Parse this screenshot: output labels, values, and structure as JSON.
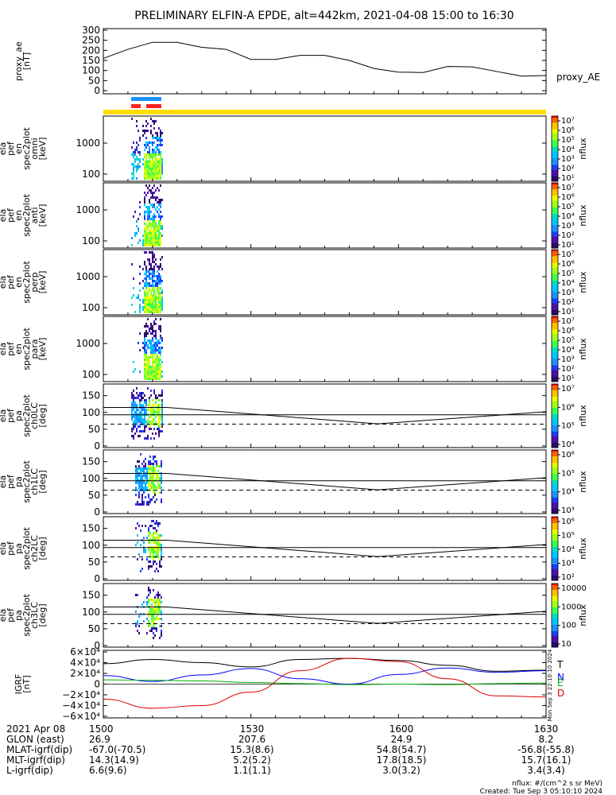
{
  "title": "PRELIMINARY ELFIN-A EPDE, alt=442km, 2021-04-08 15:00 to 16:30",
  "panels": [
    {
      "id": "proxy_ae",
      "ylabel": [
        "proxy_ae",
        "[nT]"
      ],
      "legend": "proxy_AE",
      "yticks": [
        "300",
        "250",
        "200",
        "150",
        "100",
        "50",
        "0"
      ]
    },
    {
      "id": "spec_omni",
      "ylabel": [
        "ela",
        "pef",
        "en",
        "spec2plot",
        "omni",
        "[keV]"
      ],
      "yticks": [
        "1000",
        "100"
      ],
      "cbar_label": "nflux",
      "cbar_ticks": [
        "10⁷",
        "10⁶",
        "10⁵",
        "10⁴",
        "10³",
        "10²",
        "10¹"
      ]
    },
    {
      "id": "spec_anti",
      "ylabel": [
        "ela",
        "pef",
        "en",
        "spec2plot",
        "anti",
        "[keV]"
      ],
      "yticks": [
        "1000",
        "100"
      ],
      "cbar_label": "nflux",
      "cbar_ticks": [
        "10⁷",
        "10⁶",
        "10⁵",
        "10⁴",
        "10³",
        "10²",
        "10¹"
      ]
    },
    {
      "id": "spec_perp",
      "ylabel": [
        "ela",
        "pef",
        "en",
        "spec2plot",
        "perp",
        "[keV]"
      ],
      "yticks": [
        "1000",
        "100"
      ],
      "cbar_label": "nflux",
      "cbar_ticks": [
        "10⁷",
        "10⁶",
        "10⁵",
        "10⁴",
        "10³",
        "10²",
        "10¹"
      ]
    },
    {
      "id": "spec_para",
      "ylabel": [
        "ela",
        "pef",
        "en",
        "spec2plot",
        "para",
        "[keV]"
      ],
      "yticks": [
        "1000",
        "100"
      ],
      "cbar_label": "nflux",
      "cbar_ticks": [
        "10⁷",
        "10⁶",
        "10⁵",
        "10⁴",
        "10³",
        "10²",
        "10¹"
      ]
    },
    {
      "id": "pa_ch0",
      "ylabel": [
        "ela",
        "pef",
        "pa",
        "spec2plot",
        "ch0LC",
        "[deg]"
      ],
      "yticks": [
        "150",
        "100",
        "50",
        "0"
      ],
      "cbar_label": "nflux",
      "cbar_ticks": [
        "10⁷",
        "10⁶",
        "10⁵",
        "10⁴"
      ]
    },
    {
      "id": "pa_ch1",
      "ylabel": [
        "ela",
        "pef",
        "pa",
        "spec2plot",
        "ch1LC",
        "[deg]"
      ],
      "yticks": [
        "150",
        "100",
        "50",
        "0"
      ],
      "cbar_label": "nflux",
      "cbar_ticks": [
        "10⁶",
        "10⁵",
        "10⁴",
        "10³"
      ]
    },
    {
      "id": "pa_ch2",
      "ylabel": [
        "ela",
        "pef",
        "pa",
        "spec2plot",
        "ch2LC",
        "[deg]"
      ],
      "yticks": [
        "150",
        "100",
        "50",
        "0"
      ],
      "cbar_label": "nflux",
      "cbar_ticks": [
        "10⁶",
        "10⁵",
        "10⁴",
        "10³",
        "10²"
      ]
    },
    {
      "id": "pa_ch3",
      "ylabel": [
        "ela",
        "pef",
        "pa",
        "spec2plot",
        "ch3LC",
        "[deg]"
      ],
      "yticks": [
        "150",
        "100",
        "50",
        "0"
      ],
      "cbar_label": "nflux",
      "cbar_ticks": [
        "10000",
        "1000",
        "100",
        "10"
      ]
    },
    {
      "id": "igrf",
      "ylabel": [
        "IGRF",
        "[nT]"
      ],
      "yticks": [
        "6×10⁴",
        "4×10⁴",
        "2×10⁴",
        "0",
        "−2×10⁴",
        "−4×10⁴",
        "−6×10⁴"
      ],
      "legend": [
        "T",
        "N",
        "E",
        "D"
      ],
      "stamp": "Mon Sep  3 22:10:10 2024"
    }
  ],
  "footer": {
    "rows": [
      {
        "label": "2021 Apr 08",
        "values": [
          "1500",
          "1530",
          "1600",
          "1630"
        ]
      },
      {
        "label": "GLON (east)",
        "values": [
          "26.9",
          "207.6",
          "24.9",
          "8.2"
        ]
      },
      {
        "label": "MLAT-igrf(dip)",
        "values": [
          "-67.0(-70.5)",
          "15.3(8.6)",
          "54.8(54.7)",
          "-56.8(-55.8)"
        ]
      },
      {
        "label": "MLT-igrf(dip)",
        "values": [
          "14.3(14.9)",
          "5.2(5.2)",
          "17.8(18.5)",
          "15.7(16.1)"
        ]
      },
      {
        "label": "L-igrf(dip)",
        "values": [
          "6.6(9.6)",
          "1.1(1.1)",
          "3.0(3.2)",
          "3.4(3.4)"
        ]
      }
    ],
    "note1": "nflux: #/(cm^2 s sr MeV)",
    "note2": "Created: Tue Sep  3 05:10:10 2024"
  },
  "colors": {
    "T": "#000000",
    "N": "#0000ff",
    "E": "#00b000",
    "D": "#e00000",
    "status_bar": "#ffdd00",
    "seg_blue": "#1e90ff",
    "seg_red": "#ff2020"
  },
  "chart_data": {
    "type": "line",
    "x_axis": {
      "label": "2021 Apr 08",
      "ticks": [
        "1500",
        "1530",
        "1600",
        "1630"
      ]
    },
    "proxy_ae": {
      "x": [
        "15:00",
        "15:05",
        "15:10",
        "15:15",
        "15:20",
        "15:25",
        "15:30",
        "15:35",
        "15:40",
        "15:45",
        "15:50",
        "15:55",
        "16:00",
        "16:05",
        "16:10",
        "16:15",
        "16:20",
        "16:25",
        "16:30"
      ],
      "y": [
        160,
        205,
        240,
        240,
        215,
        205,
        155,
        155,
        175,
        175,
        150,
        110,
        92,
        90,
        120,
        118,
        95,
        72,
        75
      ],
      "ylim": [
        0,
        300
      ]
    },
    "igrf": {
      "series": [
        {
          "name": "T",
          "x": [
            "15:00",
            "15:10",
            "15:20",
            "15:30",
            "15:40",
            "15:50",
            "16:00",
            "16:10",
            "16:20",
            "16:30"
          ],
          "y": [
            38000,
            46000,
            40000,
            32000,
            46000,
            48000,
            44000,
            35000,
            24000,
            26000
          ]
        },
        {
          "name": "N",
          "x": [
            "15:00",
            "15:10",
            "15:20",
            "15:30",
            "15:40",
            "15:50",
            "16:00",
            "16:10",
            "16:20",
            "16:30"
          ],
          "y": [
            16000,
            5000,
            17000,
            29000,
            10000,
            0,
            18000,
            30000,
            22000,
            25000
          ]
        },
        {
          "name": "E",
          "x": [
            "15:00",
            "15:10",
            "15:20",
            "15:30",
            "15:40",
            "15:50",
            "16:00",
            "16:10",
            "16:20",
            "16:30"
          ],
          "y": [
            8000,
            7000,
            6000,
            3000,
            1000,
            -1000,
            0,
            -1000,
            1000,
            2000
          ]
        },
        {
          "name": "D",
          "x": [
            "15:00",
            "15:10",
            "15:20",
            "15:30",
            "15:40",
            "15:50",
            "16:00",
            "16:10",
            "16:20",
            "16:30"
          ],
          "y": [
            -28000,
            -45000,
            -40000,
            -15000,
            25000,
            48000,
            42000,
            10000,
            -22000,
            -24000
          ]
        }
      ],
      "ylim": [
        -60000,
        60000
      ]
    }
  }
}
